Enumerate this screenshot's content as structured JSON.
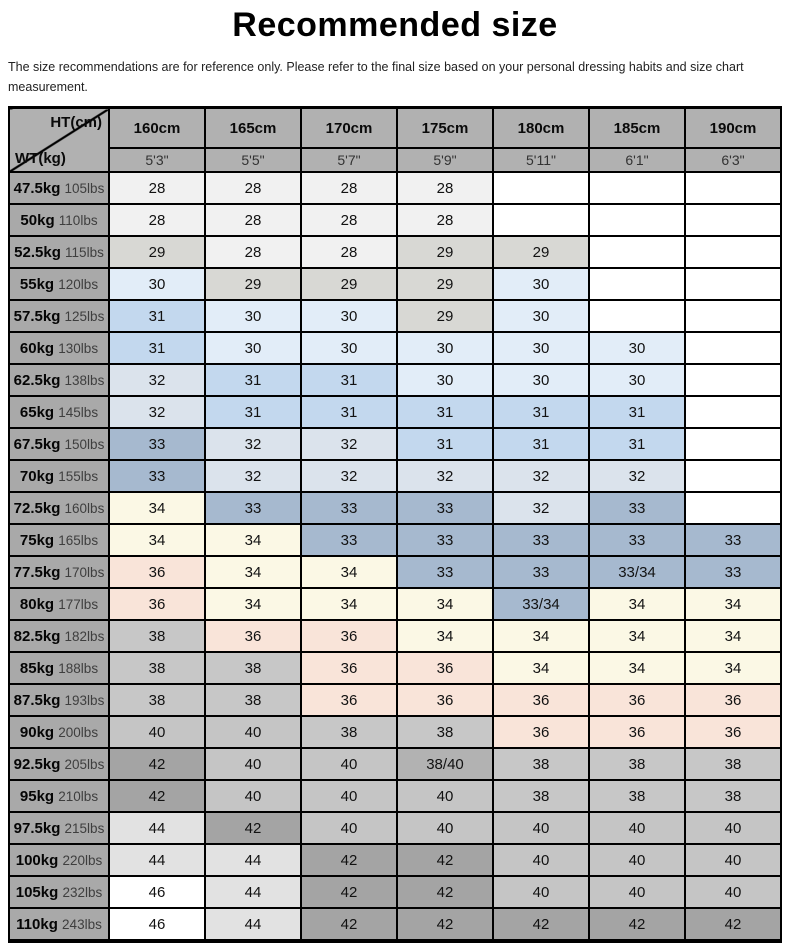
{
  "title": "Recommended size",
  "subtitle": "The size recommendations are for reference only. Please refer to the final size based on your personal dressing habits and size chart measurement.",
  "chart_data": {
    "type": "table",
    "title": "Recommended size",
    "corner": {
      "top_right": "HT(cm)",
      "bottom_left": "WT(kg)"
    },
    "columns": [
      {
        "cm": "160cm",
        "ft": "5'3\""
      },
      {
        "cm": "165cm",
        "ft": "5'5\""
      },
      {
        "cm": "170cm",
        "ft": "5'7\""
      },
      {
        "cm": "175cm",
        "ft": "5'9\""
      },
      {
        "cm": "180cm",
        "ft": "5'11\""
      },
      {
        "cm": "185cm",
        "ft": "6'1\""
      },
      {
        "cm": "190cm",
        "ft": "6'3\""
      }
    ],
    "rows": [
      {
        "kg": "47.5kg",
        "lbs": "105lbs",
        "values": [
          "28",
          "28",
          "28",
          "28",
          "",
          "",
          ""
        ]
      },
      {
        "kg": "50kg",
        "lbs": "110lbs",
        "values": [
          "28",
          "28",
          "28",
          "28",
          "",
          "",
          ""
        ]
      },
      {
        "kg": "52.5kg",
        "lbs": "115lbs",
        "values": [
          "29",
          "28",
          "28",
          "29",
          "29",
          "",
          ""
        ]
      },
      {
        "kg": "55kg",
        "lbs": "120lbs",
        "values": [
          "30",
          "29",
          "29",
          "29",
          "30",
          "",
          ""
        ]
      },
      {
        "kg": "57.5kg",
        "lbs": "125lbs",
        "values": [
          "31",
          "30",
          "30",
          "29",
          "30",
          "",
          ""
        ]
      },
      {
        "kg": "60kg",
        "lbs": "130lbs",
        "values": [
          "31",
          "30",
          "30",
          "30",
          "30",
          "30",
          ""
        ]
      },
      {
        "kg": "62.5kg",
        "lbs": "138lbs",
        "values": [
          "32",
          "31",
          "31",
          "30",
          "30",
          "30",
          ""
        ]
      },
      {
        "kg": "65kg",
        "lbs": "145lbs",
        "values": [
          "32",
          "31",
          "31",
          "31",
          "31",
          "31",
          ""
        ]
      },
      {
        "kg": "67.5kg",
        "lbs": "150lbs",
        "values": [
          "33",
          "32",
          "32",
          "31",
          "31",
          "31",
          ""
        ]
      },
      {
        "kg": "70kg",
        "lbs": "155lbs",
        "values": [
          "33",
          "32",
          "32",
          "32",
          "32",
          "32",
          ""
        ]
      },
      {
        "kg": "72.5kg",
        "lbs": "160lbs",
        "values": [
          "34",
          "33",
          "33",
          "33",
          "32",
          "33",
          ""
        ]
      },
      {
        "kg": "75kg",
        "lbs": "165lbs",
        "values": [
          "34",
          "34",
          "33",
          "33",
          "33",
          "33",
          "33"
        ]
      },
      {
        "kg": "77.5kg",
        "lbs": "170lbs",
        "values": [
          "36",
          "34",
          "34",
          "33",
          "33",
          "33/34",
          "33"
        ]
      },
      {
        "kg": "80kg",
        "lbs": "177lbs",
        "values": [
          "36",
          "34",
          "34",
          "34",
          "33/34",
          "34",
          "34"
        ]
      },
      {
        "kg": "82.5kg",
        "lbs": "182lbs",
        "values": [
          "38",
          "36",
          "36",
          "34",
          "34",
          "34",
          "34"
        ]
      },
      {
        "kg": "85kg",
        "lbs": "188lbs",
        "values": [
          "38",
          "38",
          "36",
          "36",
          "34",
          "34",
          "34"
        ]
      },
      {
        "kg": "87.5kg",
        "lbs": "193lbs",
        "values": [
          "38",
          "38",
          "36",
          "36",
          "36",
          "36",
          "36"
        ]
      },
      {
        "kg": "90kg",
        "lbs": "200lbs",
        "values": [
          "40",
          "40",
          "38",
          "38",
          "36",
          "36",
          "36"
        ]
      },
      {
        "kg": "92.5kg",
        "lbs": "205lbs",
        "values": [
          "42",
          "40",
          "40",
          "38/40",
          "38",
          "38",
          "38"
        ]
      },
      {
        "kg": "95kg",
        "lbs": "210lbs",
        "values": [
          "42",
          "40",
          "40",
          "40",
          "38",
          "38",
          "38"
        ]
      },
      {
        "kg": "97.5kg",
        "lbs": "215lbs",
        "values": [
          "44",
          "42",
          "40",
          "40",
          "40",
          "40",
          "40"
        ]
      },
      {
        "kg": "100kg",
        "lbs": "220lbs",
        "values": [
          "44",
          "44",
          "42",
          "42",
          "40",
          "40",
          "40"
        ]
      },
      {
        "kg": "105kg",
        "lbs": "232lbs",
        "values": [
          "46",
          "44",
          "42",
          "42",
          "40",
          "40",
          "40"
        ]
      },
      {
        "kg": "110kg",
        "lbs": "243lbs",
        "values": [
          "46",
          "44",
          "42",
          "42",
          "42",
          "42",
          "42"
        ]
      }
    ]
  },
  "colors": {
    "header_bg": "#b1b1b1",
    "label_bg": "#a9a9a9",
    "border": "#000000",
    "value_colors": {
      "28": "#f1f1f1",
      "29": "#d8d8d4",
      "30": "#e2edf8",
      "31": "#c3d8ee",
      "32": "#dbe3ec",
      "33": "#a6b9cf",
      "33/34": "#a6b9cf",
      "34": "#fbf8e5",
      "36": "#f9e4d9",
      "38": "#c7c7c7",
      "38/40": "#b2b2b2",
      "40": "#c5c5c5",
      "42": "#a4a4a4",
      "44": "#e2e2e2",
      "46": "#ffffff",
      "": "#ffffff"
    }
  }
}
